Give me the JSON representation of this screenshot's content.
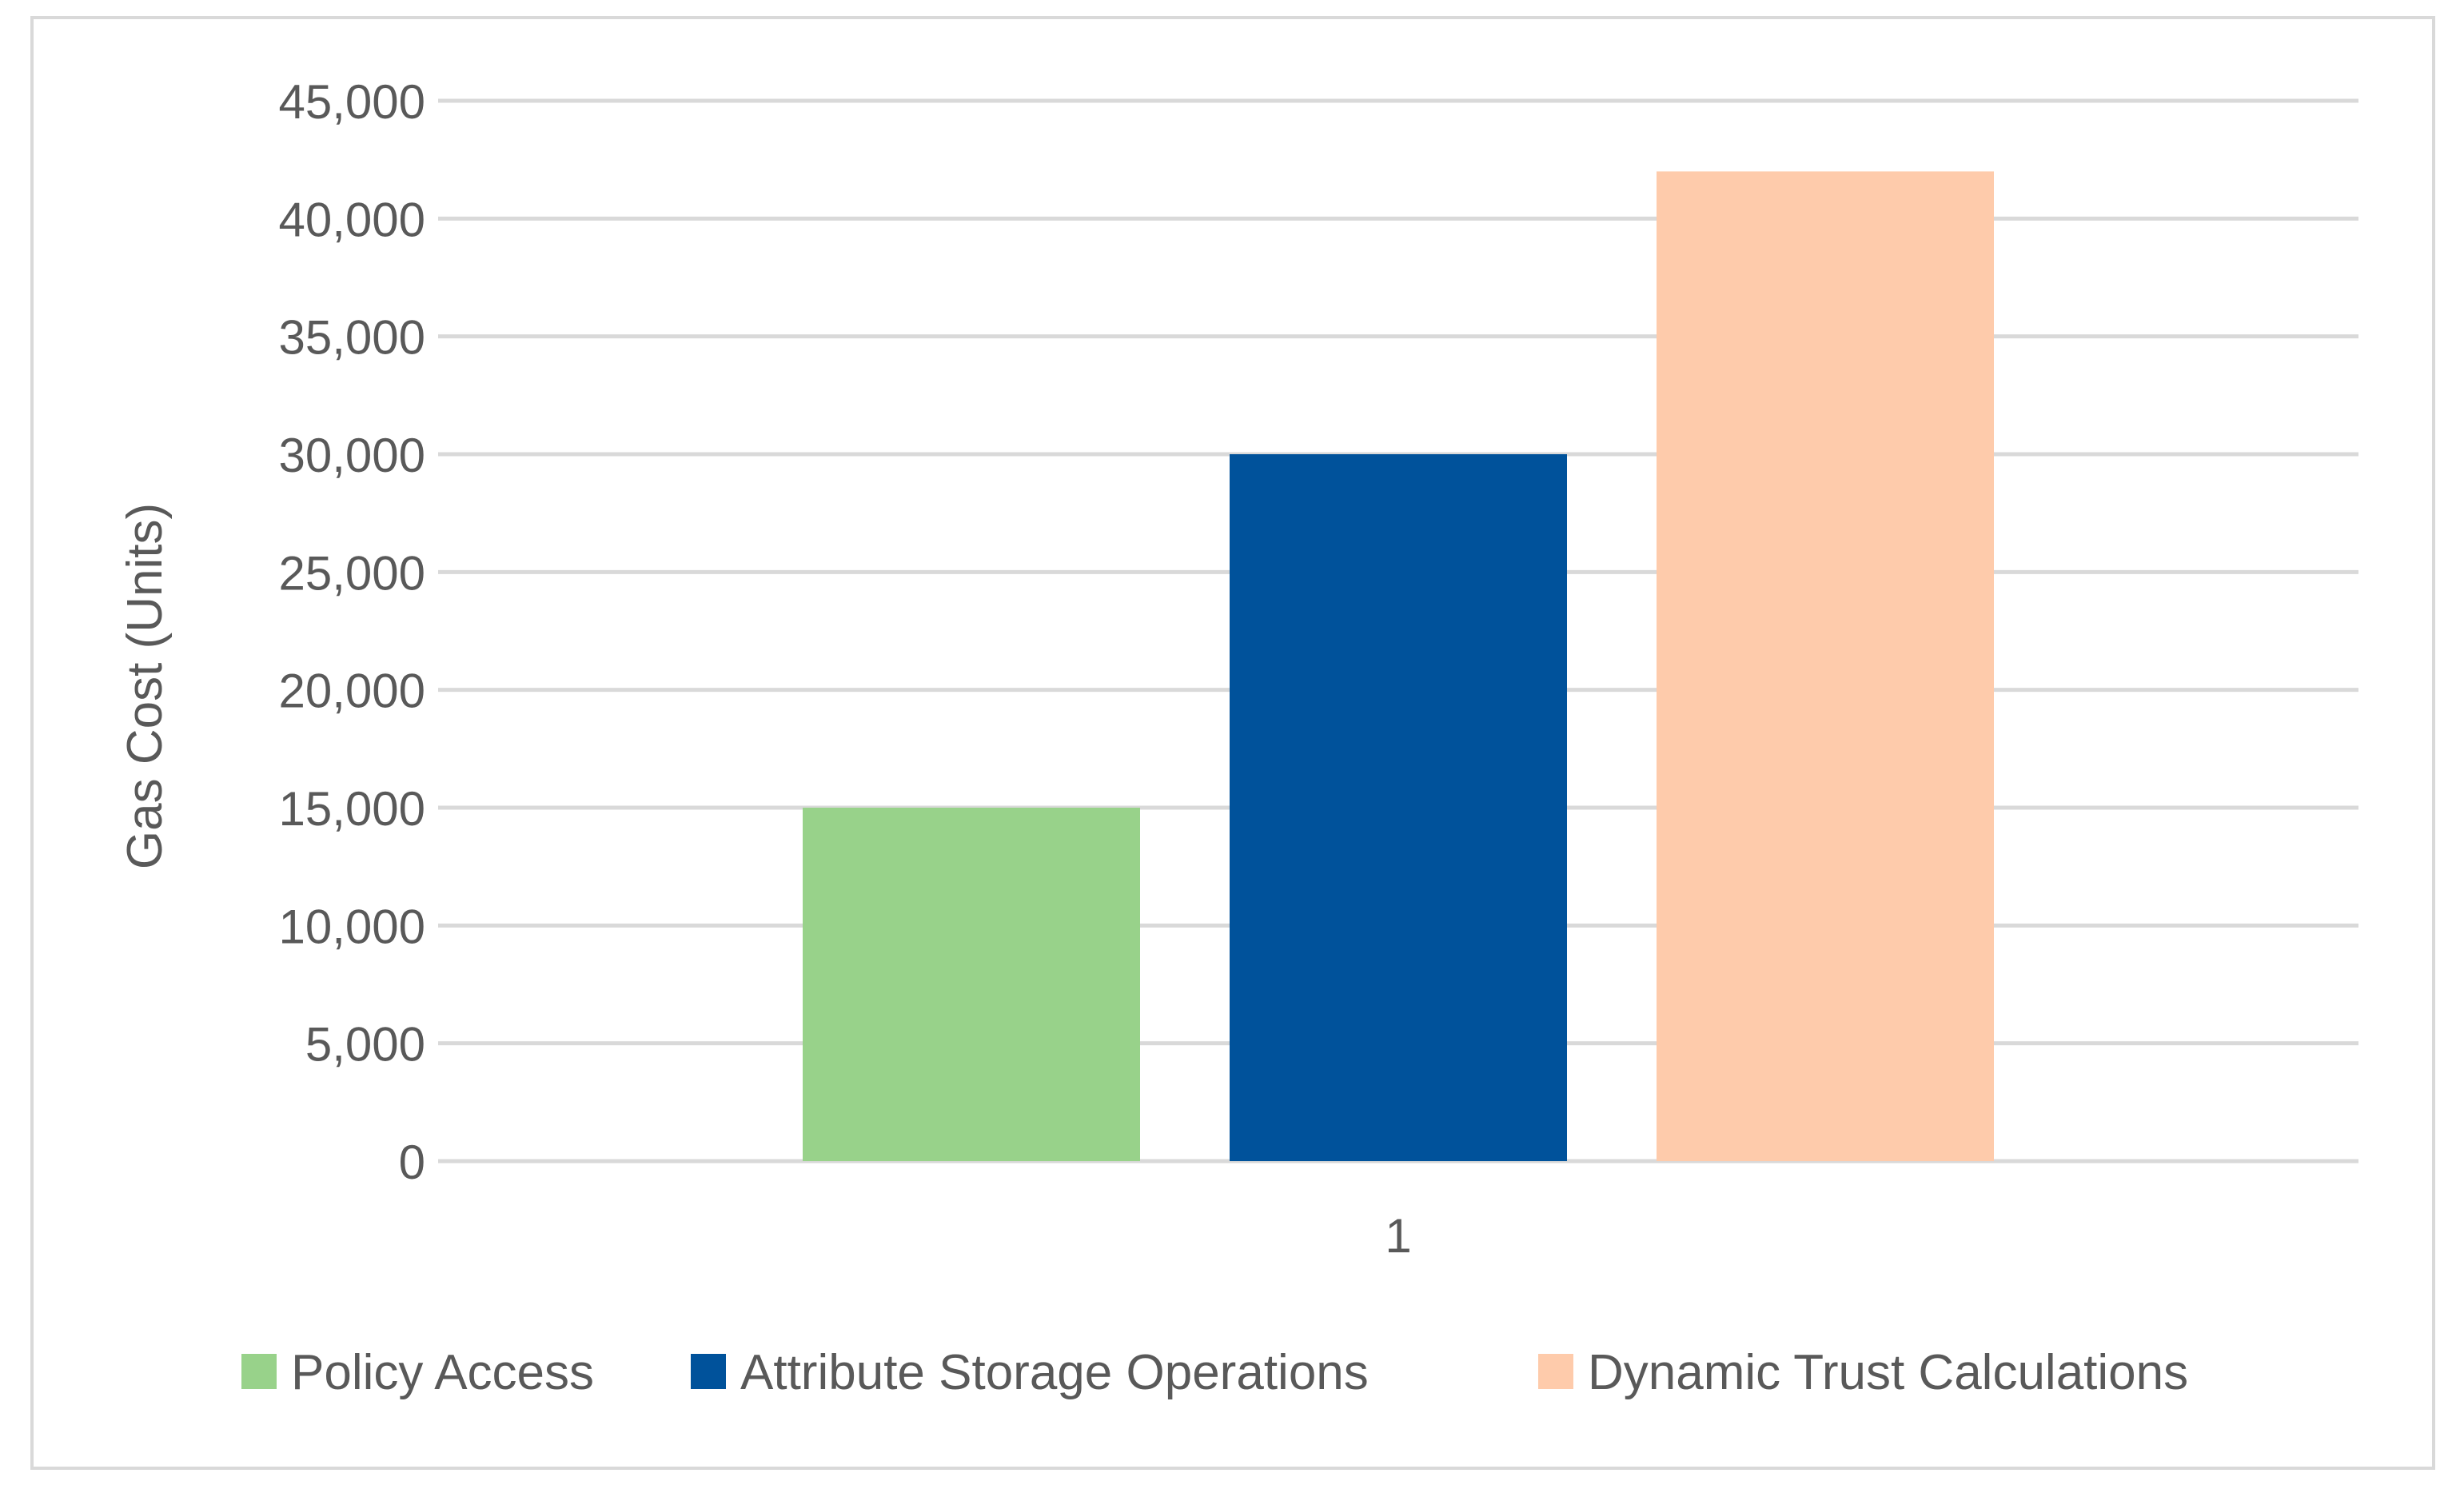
{
  "chart_data": {
    "type": "bar",
    "title": "",
    "xlabel": "",
    "ylabel": "Gas Cost (Units)",
    "categories": [
      "1"
    ],
    "series": [
      {
        "name": "Policy Access",
        "values": [
          15000
        ],
        "color": "#98d28a"
      },
      {
        "name": "Attribute Storage Operations",
        "values": [
          30000
        ],
        "color": "#00529b"
      },
      {
        "name": "Dynamic Trust Calculations",
        "values": [
          42000
        ],
        "color": "#fecbab"
      }
    ],
    "ylim": [
      0,
      45000
    ],
    "yticks": [
      "0",
      "5,000",
      "10,000",
      "15,000",
      "20,000",
      "25,000",
      "30,000",
      "35,000",
      "40,000",
      "45,000"
    ],
    "grid": true,
    "legend": "bottom"
  }
}
